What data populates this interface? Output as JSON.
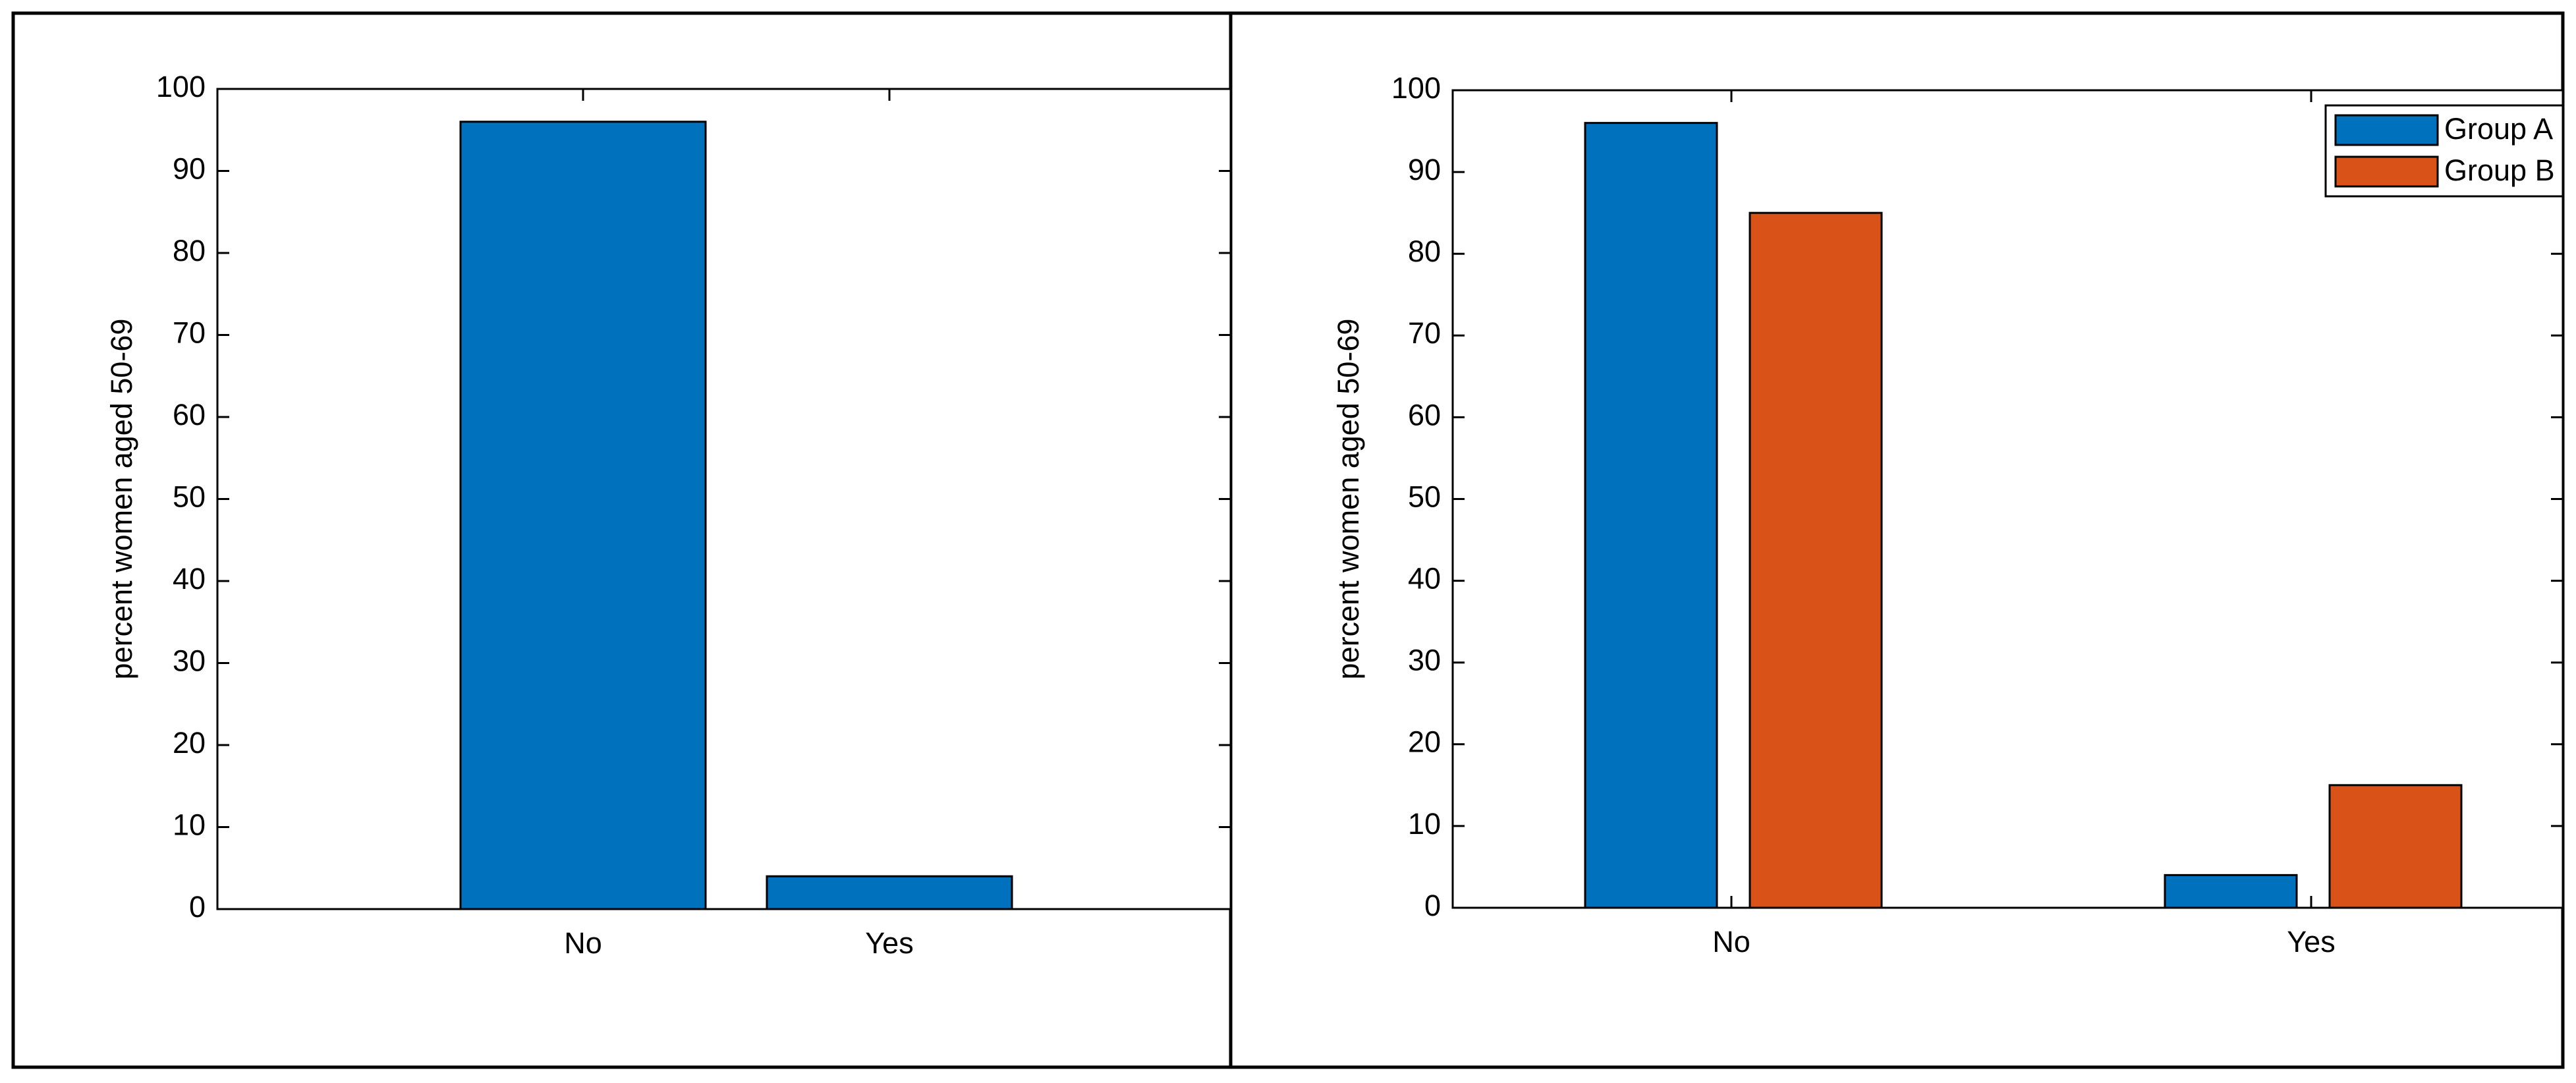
{
  "chart_data": [
    {
      "type": "bar",
      "ylabel": "percent women aged 50-69",
      "categories": [
        "No",
        "Yes"
      ],
      "values": [
        96,
        4
      ],
      "color": "#0072bd",
      "ylim": [
        0,
        100
      ],
      "yticks": [
        0,
        10,
        20,
        30,
        40,
        50,
        60,
        70,
        80,
        90,
        100
      ]
    },
    {
      "type": "bar",
      "ylabel": "percent women aged 50-69",
      "categories": [
        "No",
        "Yes"
      ],
      "series": [
        {
          "name": "Group A",
          "color": "#0072bd",
          "values": [
            96,
            4
          ]
        },
        {
          "name": "Group B",
          "color": "#d95319",
          "values": [
            85,
            15
          ]
        }
      ],
      "ylim": [
        0,
        100
      ],
      "yticks": [
        0,
        10,
        20,
        30,
        40,
        50,
        60,
        70,
        80,
        90,
        100
      ],
      "legend": "upper right"
    }
  ]
}
